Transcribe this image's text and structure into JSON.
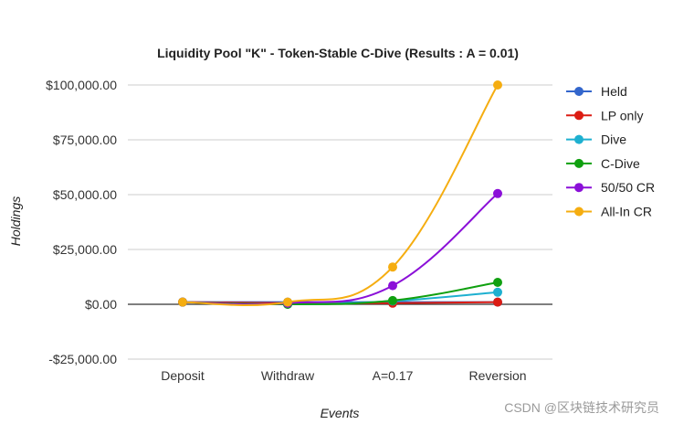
{
  "chart_data": {
    "type": "line",
    "title": "Liquidity Pool \"K\" - Token-Stable C-Dive (Results : A = 0.01)",
    "xlabel": "Events",
    "ylabel": "Holdings",
    "categories": [
      "Deposit",
      "Withdraw",
      "A=0.17",
      "Reversion"
    ],
    "ylim": [
      -25000,
      100000
    ],
    "yticks": [
      100000,
      75000,
      50000,
      25000,
      0,
      -25000
    ],
    "ytick_labels": [
      "$100,000.00",
      "$75,000.00",
      "$50,000.00",
      "$25,000.00",
      "$0.00",
      "-$25,000.00"
    ],
    "grid": true,
    "legend_position": "right",
    "series": [
      {
        "name": "Held",
        "color": "#3366cc",
        "values": [
          1000,
          1000,
          1000,
          1000
        ]
      },
      {
        "name": "LP only",
        "color": "#dc1c13",
        "values": [
          1000,
          500,
          500,
          1000
        ]
      },
      {
        "name": "Dive",
        "color": "#1eb0d0",
        "values": [
          1000,
          0,
          1500,
          5500
        ]
      },
      {
        "name": "C-Dive",
        "color": "#10a010",
        "values": [
          1000,
          0,
          1700,
          10000
        ]
      },
      {
        "name": "50/50 CR",
        "color": "#8b10d8",
        "values": [
          1000,
          500,
          8500,
          50500
        ]
      },
      {
        "name": "All-In CR",
        "color": "#f5ad10",
        "values": [
          1000,
          1000,
          17000,
          100000
        ]
      }
    ]
  },
  "watermark": "CSDN @区块链技术研究员"
}
